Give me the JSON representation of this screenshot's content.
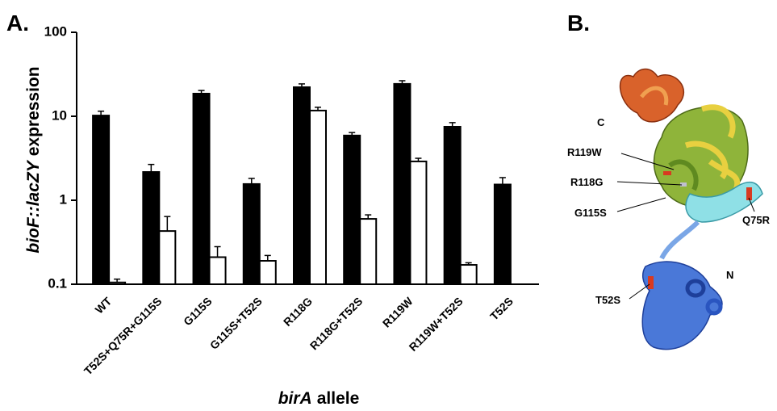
{
  "panel_a": {
    "label": "A."
  },
  "panel_b": {
    "label": "B.",
    "annotations": [
      "C",
      "R119W",
      "R118G",
      "G115S",
      "Q75R",
      "N",
      "T52S"
    ]
  },
  "chart_data": {
    "type": "bar",
    "ylabel_italic": "bioF::lacZY",
    "ylabel_plain": "expression",
    "xlabel_italic": "birA",
    "xlabel_plain": "allele",
    "categories": [
      "WT",
      "T52S+Q75R+G115S",
      "G115S",
      "G115S+T52S",
      "R118G",
      "R118G+T52S",
      "R119W",
      "R119W+T52S",
      "T52S"
    ],
    "series": [
      {
        "color": "#000000",
        "values": [
          10.2,
          2.17,
          18.6,
          1.56,
          22.2,
          5.9,
          24.3,
          7.5,
          1.54
        ],
        "errors": [
          1.3,
          0.5,
          1.7,
          0.26,
          2.1,
          0.5,
          2.2,
          0.9,
          0.32
        ]
      },
      {
        "color": "#ffffff",
        "values": [
          0.105,
          0.43,
          0.21,
          0.19,
          11.7,
          0.6,
          2.9,
          0.17,
          null
        ],
        "errors": [
          0.01,
          0.21,
          0.07,
          0.03,
          1.1,
          0.07,
          0.26,
          0.01,
          null
        ]
      }
    ],
    "yscale": "log",
    "ylim": [
      0.1,
      100
    ],
    "yticks": [
      0.1,
      1,
      10,
      100
    ]
  }
}
